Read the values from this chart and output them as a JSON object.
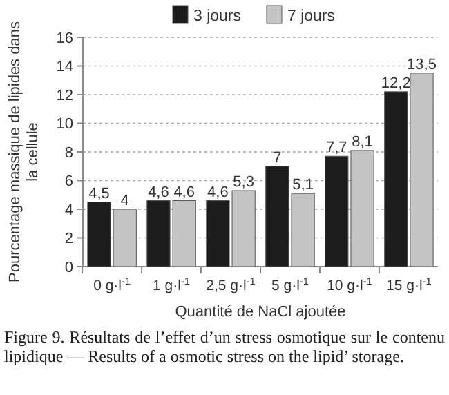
{
  "chart_data": {
    "type": "bar",
    "categories": [
      "0 g·l$^{-1}$",
      "1 g·l$^{-1}$",
      "2,5 g·l$^{-1}$",
      "5 g·l$^{-1}$",
      "10 g·l$^{-1}$",
      "15 g·l$^{-1}$"
    ],
    "series": [
      {
        "name": "3 jours",
        "color": "#1c1c1c",
        "values": [
          4.5,
          4.6,
          4.6,
          7,
          7.7,
          12.2
        ],
        "value_labels": [
          "4,5",
          "4,6",
          "4,6",
          "7",
          "7,7",
          "12,2"
        ]
      },
      {
        "name": "7 jours",
        "color": "#c4c4c4",
        "values": [
          4,
          4.6,
          5.3,
          5.1,
          8.1,
          13.5
        ],
        "value_labels": [
          "4",
          "4,6",
          "5,3",
          "5,1",
          "8,1",
          "13,5"
        ]
      }
    ],
    "xlabel": "Quantité de NaCl ajoutée",
    "ylabel": "Pourcentage massique de lipides dans la cellule",
    "ylim": [
      0,
      16
    ],
    "yticks": [
      0,
      2,
      4,
      6,
      8,
      10,
      12,
      14,
      16
    ],
    "grid": "y",
    "legend": "top",
    "annotations": [
      "Figure 9. Résultats de l’effet d’un stress osmotique sur le contenu lipidique — Results of a osmotic stress on the lipid’ storage."
    ]
  }
}
